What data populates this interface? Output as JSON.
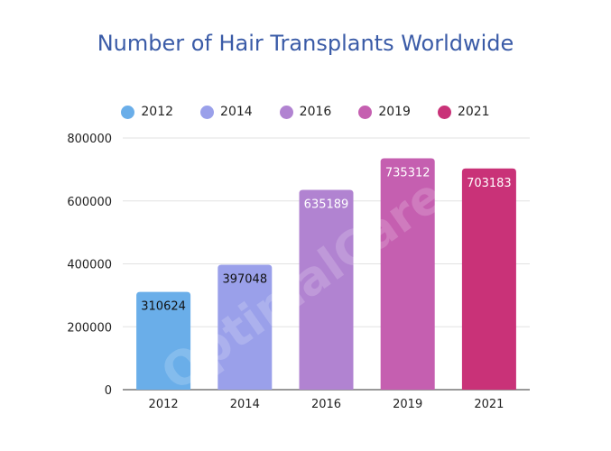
{
  "chart_data": {
    "type": "bar",
    "title": "Number of Hair Transplants Worldwide",
    "categories": [
      "2012",
      "2014",
      "2016",
      "2019",
      "2021"
    ],
    "values": [
      310624,
      397048,
      635189,
      735312,
      703183
    ],
    "colors": [
      "#6aaee9",
      "#9aa0ea",
      "#b183d1",
      "#c55fb0",
      "#c93278"
    ],
    "label_colors": [
      "#111111",
      "#111111",
      "#ffffff",
      "#ffffff",
      "#ffffff"
    ],
    "ylim": [
      0,
      800000
    ],
    "yticks": [
      0,
      200000,
      400000,
      600000,
      800000
    ],
    "grid": true,
    "legend": "top",
    "legend_items": [
      "2012",
      "2014",
      "2016",
      "2019",
      "2021"
    ],
    "watermark": "OptimalCare"
  }
}
